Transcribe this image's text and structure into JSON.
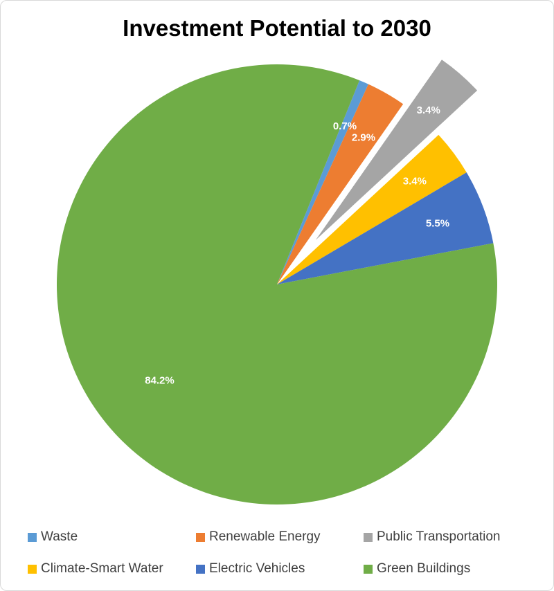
{
  "chart_data": {
    "type": "pie",
    "title": "Investment Potential to 2030",
    "slices": [
      {
        "label": "Waste",
        "value": 0.7,
        "display": "0.7%",
        "color": "#5b9bd5",
        "exploded": false
      },
      {
        "label": "Renewable Energy",
        "value": 2.9,
        "display": "2.9%",
        "color": "#ed7d31",
        "exploded": false
      },
      {
        "label": "Public Transportation",
        "value": 3.4,
        "display": "3.4%",
        "color": "#a5a5a5",
        "exploded": true
      },
      {
        "label": "Climate-Smart Water",
        "value": 3.4,
        "display": "3.4%",
        "color": "#ffc000",
        "exploded": false
      },
      {
        "label": "Electric Vehicles",
        "value": 5.5,
        "display": "5.5%",
        "color": "#4472c4",
        "exploded": false
      },
      {
        "label": "Green Buildings",
        "value": 84.2,
        "display": "84.2%",
        "color": "#70ad47",
        "exploded": false
      }
    ],
    "legend_position": "bottom",
    "data_labels": "inside"
  }
}
